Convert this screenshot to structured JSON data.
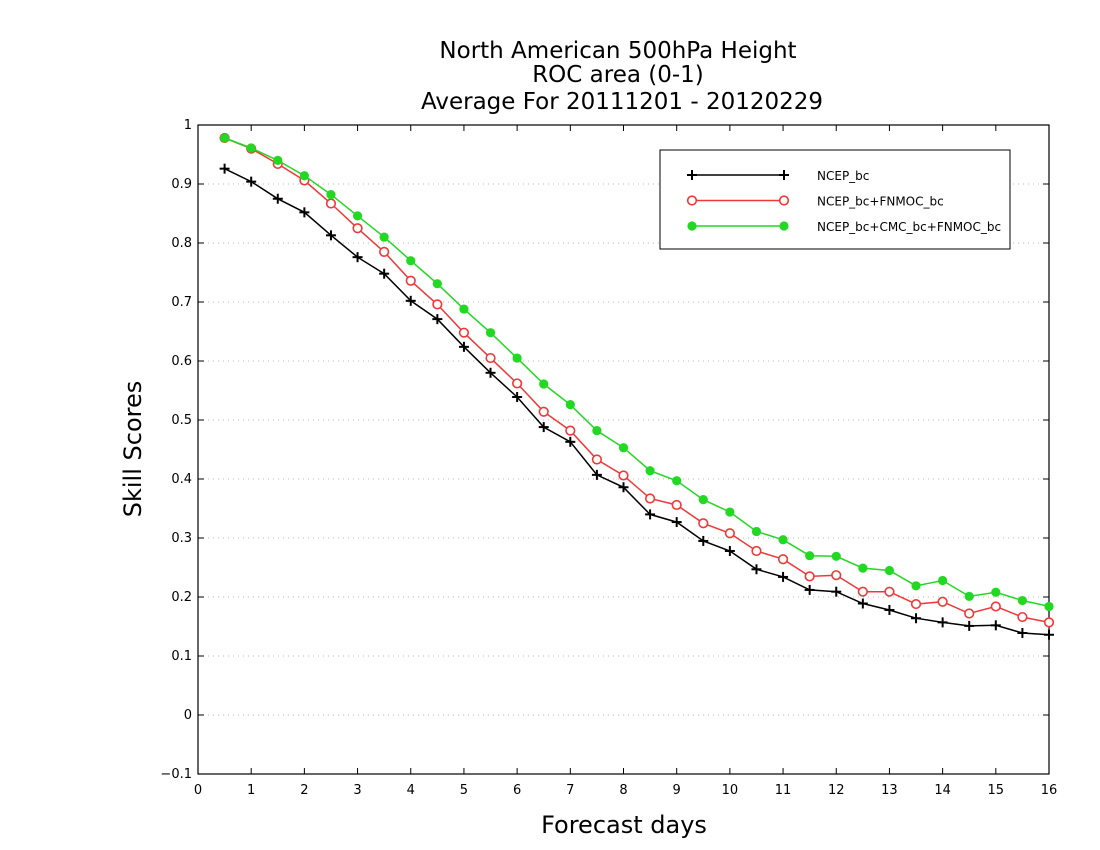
{
  "chart_data": {
    "type": "line",
    "title": [
      "North American 500hPa Height",
      "ROC area (0-1)",
      "Average For 20111201 - 20120229"
    ],
    "xlabel": "Forecast days",
    "ylabel": "Skill Scores",
    "xlim": [
      0,
      16
    ],
    "ylim": [
      -0.1,
      1
    ],
    "x_ticks": [
      "0",
      "1",
      "2",
      "3",
      "4",
      "5",
      "6",
      "7",
      "8",
      "9",
      "10",
      "11",
      "12",
      "13",
      "14",
      "15",
      "16"
    ],
    "y_ticks": [
      "−0.1",
      "0",
      "0.1",
      "0.2",
      "0.3",
      "0.4",
      "0.5",
      "0.6",
      "0.7",
      "0.8",
      "0.9",
      "1"
    ],
    "grid": "horizontal dotted",
    "legend_position": "top-right",
    "x": [
      0.5,
      1,
      1.5,
      2,
      2.5,
      3,
      3.5,
      4,
      4.5,
      5,
      5.5,
      6,
      6.5,
      7,
      7.5,
      8,
      8.5,
      9,
      9.5,
      10,
      10.5,
      11,
      11.5,
      12,
      12.5,
      13,
      13.5,
      14,
      14.5,
      15,
      15.5,
      16
    ],
    "series": [
      {
        "name": "NCEP_bc",
        "color": "#000000",
        "marker": "plus",
        "values": [
          0.926,
          0.904,
          0.875,
          0.852,
          0.813,
          0.776,
          0.748,
          0.702,
          0.671,
          0.624,
          0.58,
          0.539,
          0.488,
          0.463,
          0.407,
          0.386,
          0.34,
          0.327,
          0.295,
          0.278,
          0.247,
          0.234,
          0.212,
          0.209,
          0.189,
          0.178,
          0.164,
          0.157,
          0.151,
          0.152,
          0.139,
          0.136
        ]
      },
      {
        "name": "NCEP_bc+FNMOC_bc",
        "color": "#f03838",
        "marker": "open-circle",
        "values": [
          0.978,
          0.96,
          0.934,
          0.906,
          0.867,
          0.825,
          0.785,
          0.736,
          0.696,
          0.648,
          0.605,
          0.562,
          0.514,
          0.482,
          0.433,
          0.406,
          0.367,
          0.356,
          0.325,
          0.308,
          0.278,
          0.264,
          0.235,
          0.237,
          0.209,
          0.209,
          0.188,
          0.192,
          0.172,
          0.184,
          0.166,
          0.157
        ]
      },
      {
        "name": "NCEP_bc+CMC_bc+FNMOC_bc",
        "color": "#22d822",
        "marker": "filled-circle",
        "values": [
          0.978,
          0.961,
          0.94,
          0.914,
          0.882,
          0.846,
          0.81,
          0.77,
          0.731,
          0.688,
          0.648,
          0.605,
          0.561,
          0.526,
          0.482,
          0.453,
          0.414,
          0.397,
          0.365,
          0.344,
          0.311,
          0.297,
          0.27,
          0.269,
          0.249,
          0.245,
          0.219,
          0.228,
          0.201,
          0.208,
          0.194,
          0.184
        ]
      }
    ]
  }
}
